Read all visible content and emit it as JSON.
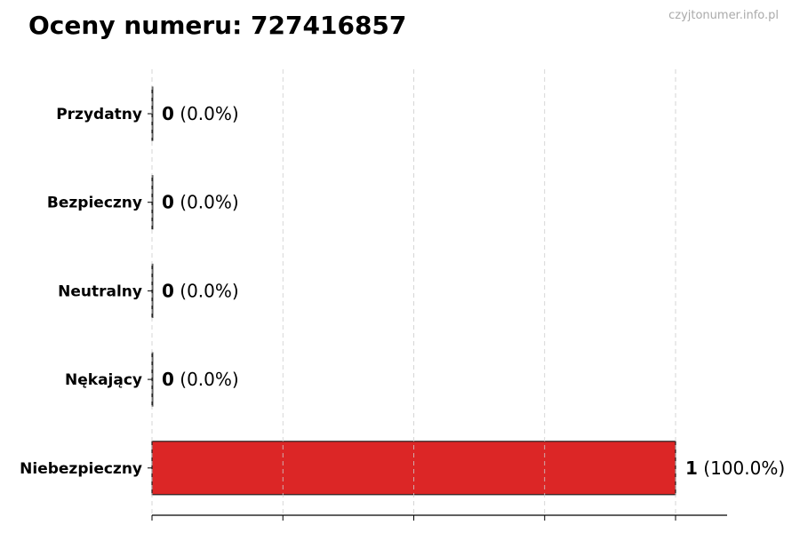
{
  "title": "Oceny numeru: 727416857",
  "watermark": "czyjtonumer.info.pl",
  "chart_data": {
    "type": "bar",
    "orientation": "horizontal",
    "categories": [
      "Przydatny",
      "Bezpieczny",
      "Neutralny",
      "Nękający",
      "Niebezpieczny"
    ],
    "values": [
      0,
      0,
      0,
      0,
      1
    ],
    "labels": [
      "(0.0%)",
      "(0.0%)",
      "(0.0%)",
      "(0.0%)",
      "(100.0%)"
    ],
    "colors": [
      "#4caf50",
      "#2e7d32",
      "#9e9e9e",
      "#ff9800",
      "#dc2626"
    ],
    "xlim": [
      0,
      1.1
    ],
    "xticks": [
      0,
      0.25,
      0.5,
      0.75,
      1.0
    ],
    "grid": "x dashed",
    "xlabel": "",
    "ylabel": ""
  }
}
